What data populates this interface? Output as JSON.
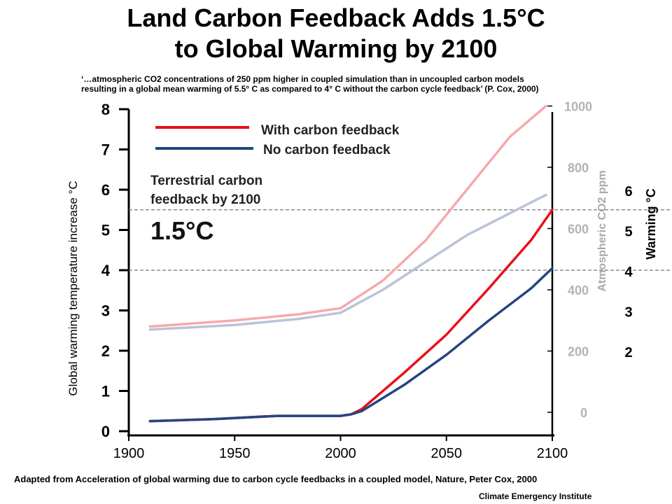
{
  "title_line1": "Land Carbon Feedback Adds 1.5°C",
  "title_line2": "to Global Warming by 2100",
  "quote_line1": "‘…atmospheric CO2 concentrations of 250 ppm higher in coupled simulation than in uncoupled carbon models",
  "quote_line2": "resulting in a global mean warming of 5.5° C as compared to 4° C without the carbon cycle feedback’ (P. Cox, 2000)",
  "source": "Adapted from Acceleration of global warming due to carbon cycle feedbacks in a coupled model, Nature, Peter Cox, 2000",
  "credit": "Climate Emergency Institute",
  "chart_data": {
    "type": "line",
    "title": "",
    "ylabel": "Global warming temperature increase °C",
    "y2label": "Atmospheric CO2 ppm",
    "y3label": "Warming °C",
    "xlim": [
      1900,
      2100
    ],
    "ylim": [
      0,
      8
    ],
    "y2lim": [
      -100,
      1050
    ],
    "x_ticks": [
      "1900",
      "1950",
      "2000",
      "2050",
      "2100"
    ],
    "y_ticks": [
      "0",
      "1",
      "2",
      "3",
      "4",
      "5",
      "6",
      "7",
      "8"
    ],
    "y2_ticks": [
      "0",
      "200",
      "400",
      "600",
      "800",
      "1000"
    ],
    "y3_ticks": [
      "2",
      "3",
      "4",
      "5",
      "6"
    ],
    "legend_position": "top-left",
    "legend": [
      "With carbon feedback",
      "No carbon feedback"
    ],
    "annotation_line1": "Terrestrial carbon",
    "annotation_line2": "feedback by 2100",
    "annotation_value": "1.5°C",
    "reference_lines": [
      5.5,
      4.0
    ],
    "series": [
      {
        "name": "With carbon feedback",
        "axis": "temperature",
        "color": "#e8101a",
        "x": [
          1910,
          1940,
          1970,
          1980,
          2000,
          2005,
          2010,
          2030,
          2050,
          2070,
          2090,
          2100
        ],
        "y": [
          0.25,
          0.3,
          0.38,
          0.38,
          0.38,
          0.42,
          0.55,
          1.45,
          2.4,
          3.55,
          4.75,
          5.5
        ]
      },
      {
        "name": "No carbon feedback",
        "axis": "temperature",
        "color": "#24467f",
        "x": [
          1910,
          1940,
          1970,
          1980,
          2000,
          2005,
          2010,
          2030,
          2050,
          2070,
          2090,
          2100
        ],
        "y": [
          0.25,
          0.3,
          0.38,
          0.38,
          0.38,
          0.42,
          0.5,
          1.15,
          1.9,
          2.75,
          3.55,
          4.05
        ]
      },
      {
        "name": "With carbon feedback",
        "axis": "co2",
        "color": "#f6a9ad",
        "x": [
          1910,
          1950,
          1980,
          2000,
          2020,
          2040,
          2060,
          2080,
          2097
        ],
        "y": [
          280,
          300,
          320,
          340,
          430,
          560,
          730,
          900,
          1000
        ]
      },
      {
        "name": "No carbon feedback",
        "axis": "co2",
        "color": "#b9c4d6",
        "x": [
          1910,
          1950,
          1980,
          2000,
          2020,
          2040,
          2060,
          2080,
          2097
        ],
        "y": [
          270,
          285,
          305,
          325,
          400,
          490,
          580,
          650,
          710
        ]
      }
    ]
  }
}
